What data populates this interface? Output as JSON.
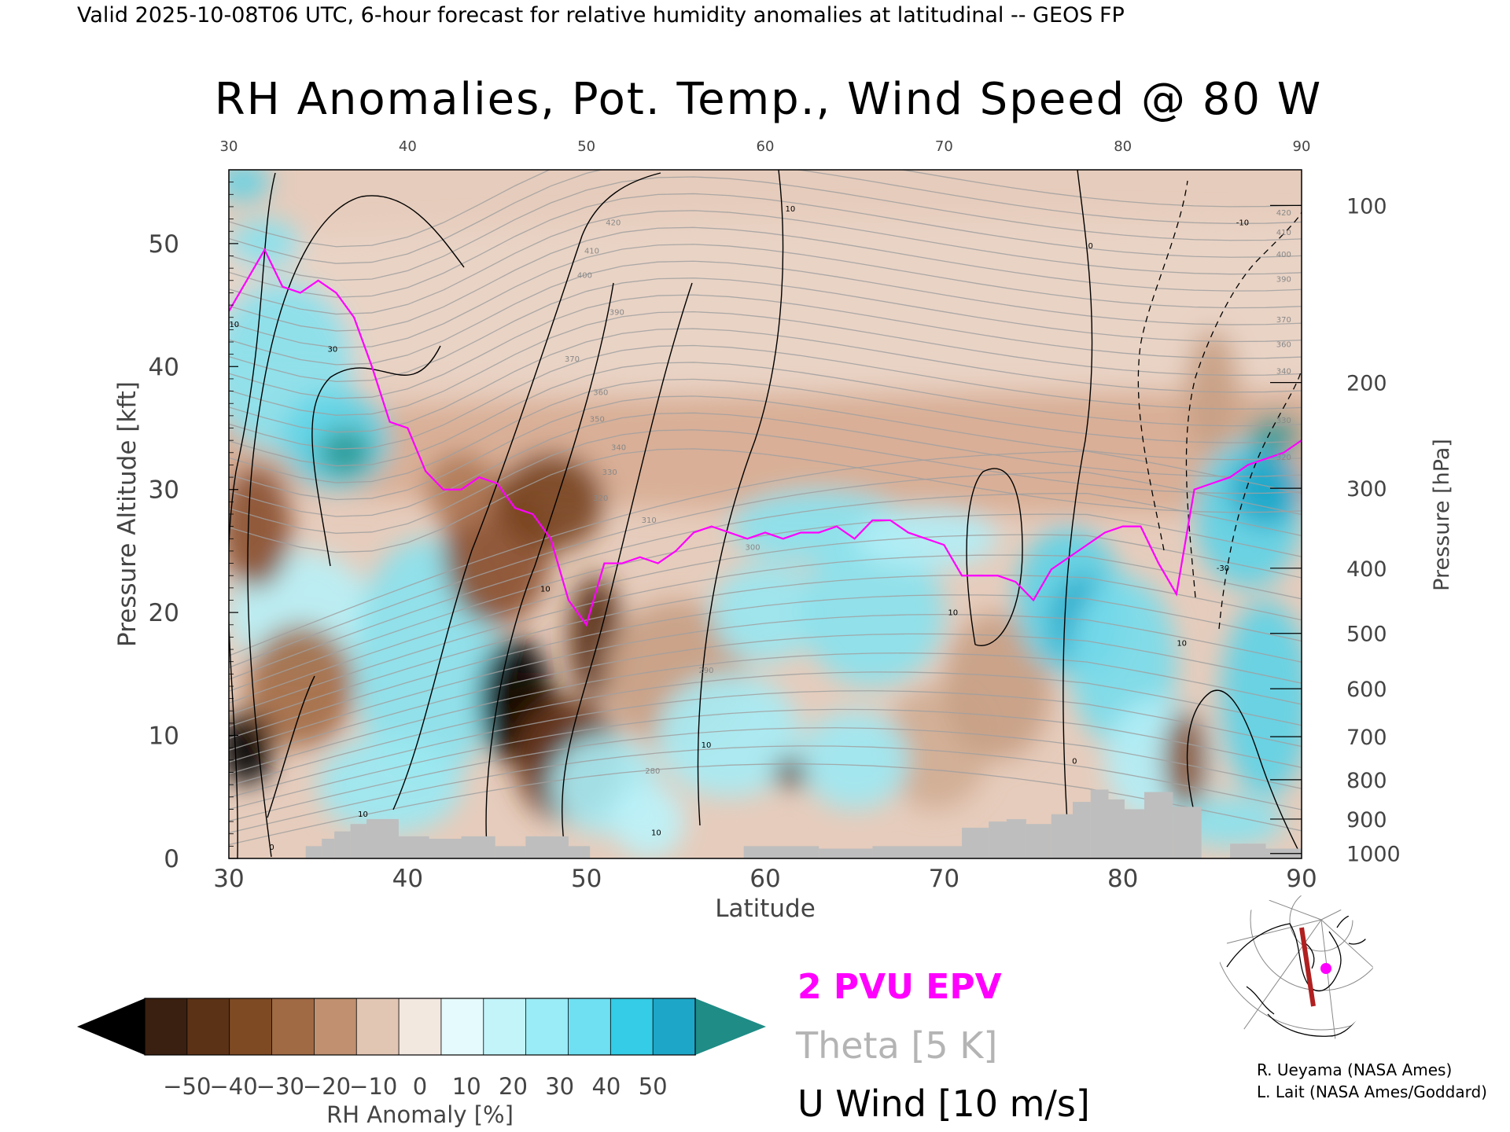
{
  "header": {
    "valid_line": "Valid 2025-10-08T06 UTC, 6-hour forecast for relative humidity anomalies at latitudinal -- GEOS FP"
  },
  "chart_data": {
    "type": "heatmap",
    "title": "RH Anomalies, Pot. Temp., Wind Speed @ 80 W",
    "xlabel": "Latitude",
    "ylabel_left": "Pressure Altitude [kft]",
    "ylabel_right": "Pressure [hPa]",
    "xlim": [
      30,
      90
    ],
    "ylim": [
      0,
      56
    ],
    "x_ticks": [
      30,
      40,
      50,
      60,
      70,
      80,
      90
    ],
    "x_ticks_top": [
      30,
      40,
      50,
      60,
      70,
      80,
      90
    ],
    "y_ticks": [
      0,
      10,
      20,
      30,
      40,
      50
    ],
    "pressure_ticks": [
      {
        "hpa": 100,
        "kft": 53.1
      },
      {
        "hpa": 200,
        "kft": 38.7
      },
      {
        "hpa": 300,
        "kft": 30.1
      },
      {
        "hpa": 400,
        "kft": 23.6
      },
      {
        "hpa": 500,
        "kft": 18.3
      },
      {
        "hpa": 600,
        "kft": 13.8
      },
      {
        "hpa": 700,
        "kft": 9.9
      },
      {
        "hpa": 800,
        "kft": 6.4
      },
      {
        "hpa": 900,
        "kft": 3.2
      },
      {
        "hpa": 1000,
        "kft": 0.4
      }
    ],
    "colorbar": {
      "label": "RH Anomaly [%]",
      "ticks": [
        -50,
        -40,
        -30,
        -20,
        -10,
        0,
        10,
        20,
        30,
        40,
        50
      ],
      "colors": [
        "#3a2010",
        "#5c3216",
        "#7e4a24",
        "#a06a44",
        "#c09070",
        "#e2c6b4",
        "#f2e8e0",
        "#e4fafc",
        "#c2f4fa",
        "#9aecf6",
        "#6ee0f2",
        "#34cce6",
        "#1ea6c8"
      ],
      "under_color": "#000000",
      "over_color": "#1f8c86"
    },
    "legend": {
      "epv_label": "2 PVU EPV",
      "epv_color": "#ff00ff",
      "theta_label": "Theta [5 K]",
      "theta_color": "#b4b4b4",
      "wind_label": "U Wind [10 m/s]",
      "wind_color": "#000000"
    },
    "theta_levels": [
      280,
      290,
      300,
      310,
      320,
      330,
      340,
      350,
      360,
      370,
      380,
      390,
      400,
      410,
      420
    ],
    "theta_labels": [
      {
        "text": "420",
        "x": 51.5,
        "y": 51.5
      },
      {
        "text": "410",
        "x": 50.3,
        "y": 49.2
      },
      {
        "text": "400",
        "x": 49.9,
        "y": 47.2
      },
      {
        "text": "390",
        "x": 51.7,
        "y": 44.2
      },
      {
        "text": "370",
        "x": 49.2,
        "y": 40.4
      },
      {
        "text": "360",
        "x": 50.8,
        "y": 37.7
      },
      {
        "text": "350",
        "x": 50.6,
        "y": 35.5
      },
      {
        "text": "340",
        "x": 51.8,
        "y": 33.2
      },
      {
        "text": "330",
        "x": 51.3,
        "y": 31.2
      },
      {
        "text": "320",
        "x": 50.8,
        "y": 29.1
      },
      {
        "text": "310",
        "x": 53.5,
        "y": 27.3
      },
      {
        "text": "300",
        "x": 59.3,
        "y": 25.1
      },
      {
        "text": "290",
        "x": 56.7,
        "y": 15.1
      },
      {
        "text": "280",
        "x": 53.7,
        "y": 6.9
      },
      {
        "text": "420",
        "x": 89.0,
        "y": 52.3
      },
      {
        "text": "410",
        "x": 89.0,
        "y": 50.7
      },
      {
        "text": "400",
        "x": 89.0,
        "y": 48.9
      },
      {
        "text": "390",
        "x": 89.0,
        "y": 46.9
      },
      {
        "text": "370",
        "x": 89.0,
        "y": 43.6
      },
      {
        "text": "360",
        "x": 89.0,
        "y": 41.6
      },
      {
        "text": "340",
        "x": 89.0,
        "y": 39.4
      },
      {
        "text": "330",
        "x": 89.0,
        "y": 35.4
      },
      {
        "text": "320",
        "x": 89.0,
        "y": 32.4
      }
    ],
    "wind_labels": [
      {
        "text": "10",
        "x": 30.3,
        "y": 43.2
      },
      {
        "text": "30",
        "x": 35.8,
        "y": 41.2
      },
      {
        "text": "10",
        "x": 47.7,
        "y": 21.7
      },
      {
        "text": "10",
        "x": 61.4,
        "y": 52.6
      },
      {
        "text": "0",
        "x": 78.2,
        "y": 49.6
      },
      {
        "text": "10",
        "x": 70.5,
        "y": 19.8
      },
      {
        "text": "10",
        "x": 56.7,
        "y": 9.0
      },
      {
        "text": "10",
        "x": 53.9,
        "y": 1.9
      },
      {
        "text": "0",
        "x": 77.3,
        "y": 7.7
      },
      {
        "text": "10",
        "x": 83.3,
        "y": 17.3
      },
      {
        "text": "-10",
        "x": 86.7,
        "y": 51.5
      },
      {
        "text": "-30",
        "x": 85.6,
        "y": 23.4
      },
      {
        "text": "0",
        "x": 32.4,
        "y": 0.7
      },
      {
        "text": "10",
        "x": 37.5,
        "y": 3.4
      }
    ],
    "epv_2pvu": {
      "x": [
        30,
        31,
        32,
        33,
        34,
        35,
        36,
        37,
        38,
        39,
        40,
        41,
        42,
        43,
        44,
        45,
        46,
        47,
        48,
        49,
        50,
        51,
        52,
        53,
        54,
        55,
        56,
        57,
        58,
        59,
        60,
        61,
        62,
        63,
        64,
        65,
        66,
        67,
        68,
        69,
        70,
        71,
        72,
        73,
        74,
        75,
        76,
        77,
        78,
        79,
        80,
        81,
        82,
        83,
        84,
        85,
        86,
        87,
        88,
        89,
        90
      ],
      "y": [
        44.5,
        47.0,
        49.5,
        46.5,
        46.0,
        47.0,
        46.0,
        44.0,
        40.0,
        35.5,
        35.0,
        31.5,
        30.0,
        30.0,
        31.0,
        30.5,
        28.5,
        28.0,
        26.0,
        21.0,
        19.0,
        24.0,
        24.0,
        24.5,
        24.0,
        25.0,
        26.5,
        27.0,
        26.5,
        26.0,
        26.5,
        26.0,
        26.5,
        26.5,
        27.0,
        26.0,
        27.5,
        27.5,
        26.5,
        26.0,
        25.5,
        23.0,
        23.0,
        23.0,
        22.5,
        21.0,
        23.5,
        24.5,
        25.5,
        26.5,
        27.0,
        27.0,
        24.0,
        21.5,
        30.0,
        30.5,
        31.0,
        32.0,
        32.5,
        33.0,
        34.0
      ]
    },
    "terrain_kft": [
      {
        "x0": 34.3,
        "x1": 35.2,
        "top": 1.0
      },
      {
        "x0": 35.2,
        "x1": 35.9,
        "top": 1.6
      },
      {
        "x0": 35.9,
        "x1": 36.8,
        "top": 2.2
      },
      {
        "x0": 36.8,
        "x1": 37.7,
        "top": 2.8
      },
      {
        "x0": 37.7,
        "x1": 39.5,
        "top": 3.2
      },
      {
        "x0": 39.5,
        "x1": 41.2,
        "top": 1.8
      },
      {
        "x0": 41.2,
        "x1": 43.0,
        "top": 1.6
      },
      {
        "x0": 43.0,
        "x1": 44.9,
        "top": 1.8
      },
      {
        "x0": 44.9,
        "x1": 46.6,
        "top": 1.0
      },
      {
        "x0": 46.6,
        "x1": 49.0,
        "top": 1.8
      },
      {
        "x0": 49.0,
        "x1": 50.2,
        "top": 1.0
      },
      {
        "x0": 58.8,
        "x1": 63.0,
        "top": 1.0
      },
      {
        "x0": 63.0,
        "x1": 66.0,
        "top": 0.8
      },
      {
        "x0": 66.0,
        "x1": 71.0,
        "top": 1.0
      },
      {
        "x0": 71.0,
        "x1": 72.5,
        "top": 2.5
      },
      {
        "x0": 72.5,
        "x1": 73.5,
        "top": 3.0
      },
      {
        "x0": 73.5,
        "x1": 74.6,
        "top": 3.2
      },
      {
        "x0": 74.6,
        "x1": 76.0,
        "top": 2.8
      },
      {
        "x0": 76.0,
        "x1": 77.2,
        "top": 3.6
      },
      {
        "x0": 77.2,
        "x1": 78.2,
        "top": 4.6
      },
      {
        "x0": 78.2,
        "x1": 79.2,
        "top": 5.6
      },
      {
        "x0": 79.2,
        "x1": 80.1,
        "top": 4.8
      },
      {
        "x0": 80.1,
        "x1": 81.2,
        "top": 4.0
      },
      {
        "x0": 81.2,
        "x1": 82.8,
        "top": 5.4
      },
      {
        "x0": 82.8,
        "x1": 84.4,
        "top": 4.2
      },
      {
        "x0": 86.0,
        "x1": 88.0,
        "top": 1.2
      },
      {
        "x0": 88.0,
        "x1": 90.0,
        "top": 0.8
      }
    ],
    "terrain_color": "#bebebe"
  },
  "credits": {
    "line1": "R. Ueyama (NASA Ames)",
    "line2": "L. Lait (NASA Ames/Goddard)"
  },
  "inset_map": {
    "section_color": "#b02020",
    "marker_color": "#ff00ff"
  }
}
